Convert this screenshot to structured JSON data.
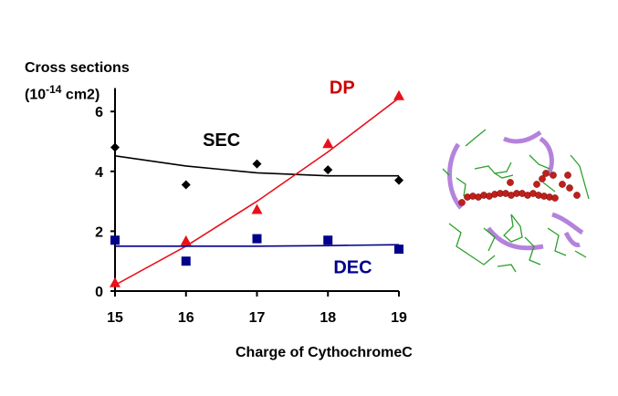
{
  "chart_data": {
    "type": "scatter",
    "title": "",
    "ylabel": {
      "line1": "Cross sections",
      "line2_prefix": "(10",
      "line2_exp": "-14",
      "line2_suffix": " cm2)"
    },
    "xlabel": "Charge of CythochromeC",
    "xlim": [
      15,
      19
    ],
    "ylim": [
      0,
      6.6
    ],
    "x_ticks": [
      15,
      16,
      17,
      18,
      19
    ],
    "y_ticks": [
      0,
      2,
      4,
      6
    ],
    "grid": false,
    "x": [
      15,
      16,
      17,
      18,
      19
    ],
    "series": [
      {
        "name": "SEC",
        "marker": "diamond",
        "color": "#000000",
        "values": [
          4.8,
          3.55,
          4.25,
          4.05,
          3.7
        ],
        "trend": {
          "type": "polynomial",
          "values": [
            4.52,
            4.18,
            3.95,
            3.85,
            3.85
          ]
        }
      },
      {
        "name": "DP",
        "marker": "triangle",
        "color": "#e8101a",
        "values": [
          0.25,
          1.65,
          2.7,
          4.9,
          6.5
        ],
        "trend": {
          "type": "polynomial",
          "values": [
            0.2,
            1.5,
            3.0,
            4.65,
            6.45
          ]
        }
      },
      {
        "name": "DEC",
        "marker": "square",
        "color": "#00008b",
        "values": [
          1.7,
          1.0,
          1.75,
          1.7,
          1.4
        ],
        "trend": {
          "type": "linear",
          "values": [
            1.5,
            1.5,
            1.5,
            1.52,
            1.55
          ]
        }
      }
    ],
    "annotations": [
      {
        "text": "SEC",
        "x": 16.5,
        "y": 4.85,
        "color": "#000000"
      },
      {
        "text": "DP",
        "x": 18.2,
        "y": 6.6,
        "color": "#cc0000"
      },
      {
        "text": "DEC",
        "x": 18.35,
        "y": 0.6,
        "color": "#00008b"
      }
    ]
  },
  "figure": {
    "molecule_image": "cytochrome-c-structure"
  }
}
